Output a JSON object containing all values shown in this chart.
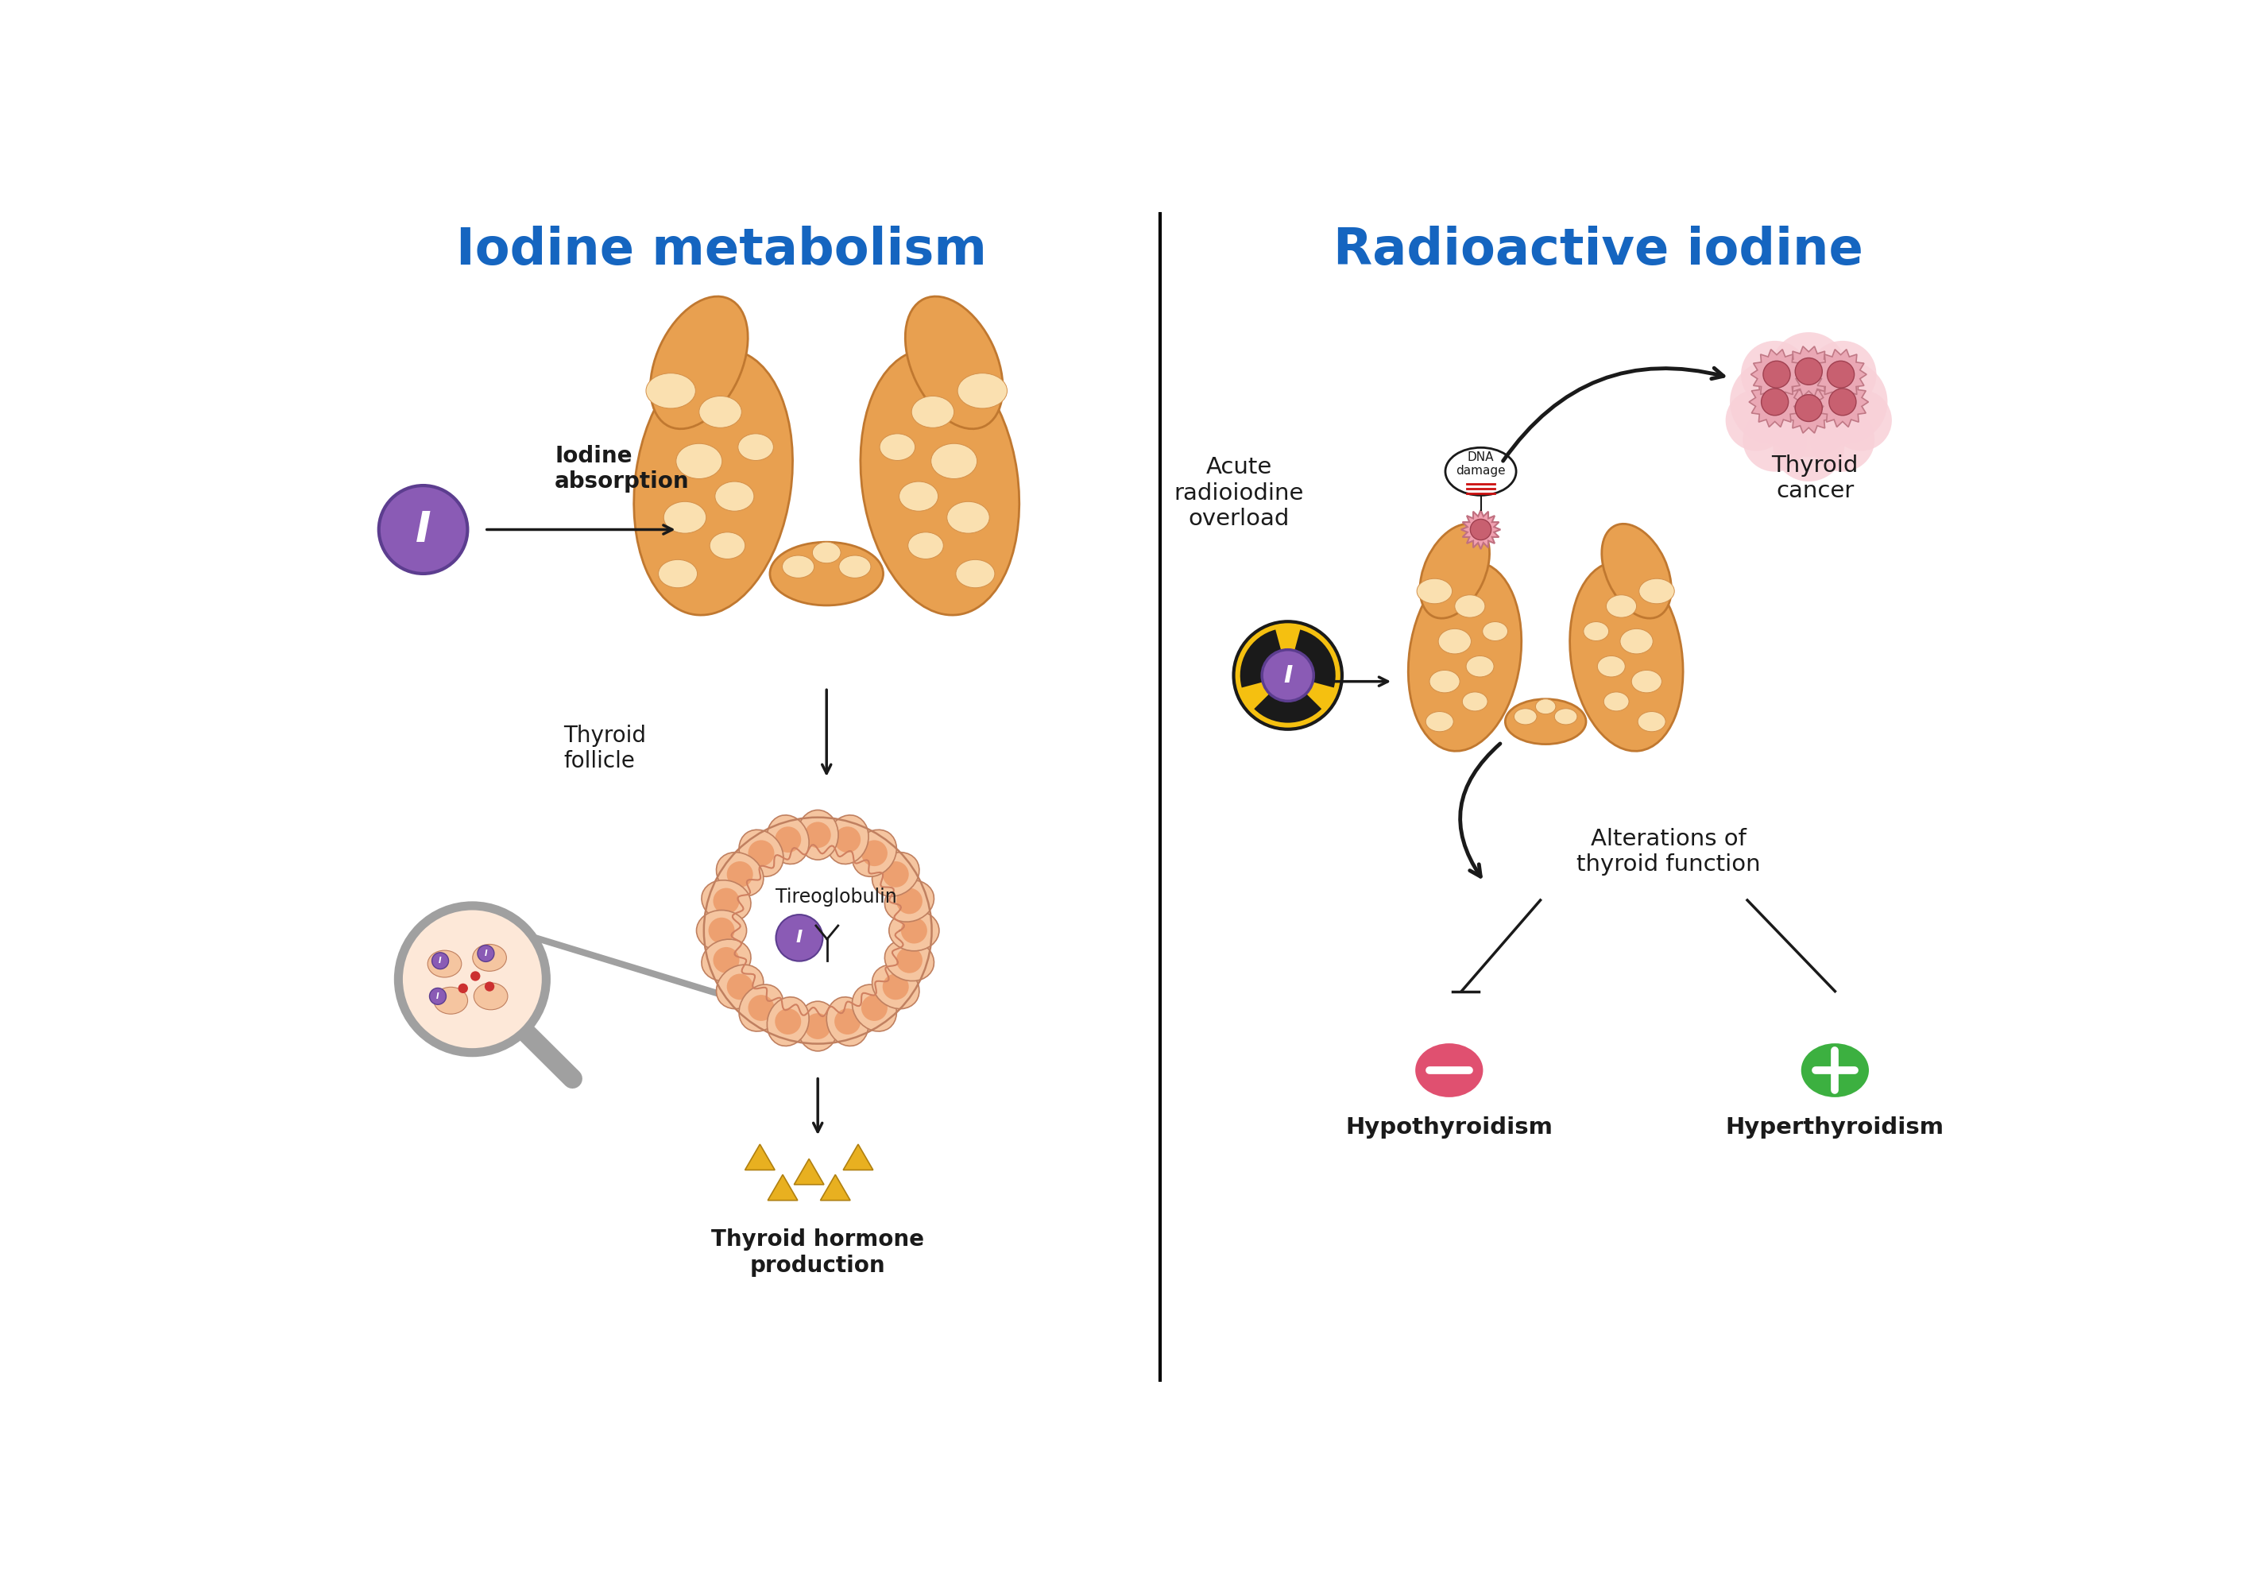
{
  "title_left": "Iodine metabolism",
  "title_right": "Radioactive iodine",
  "title_color": "#1565C0",
  "title_fontsize": 46,
  "bg_color": "#ffffff",
  "left_labels": {
    "iodine_absorption": "Iodine\nabsorption",
    "thyroid_follicle": "Thyroid\nfollicle",
    "tireoglobulin": "Tireoglobulin",
    "thyroid_hormone": "Thyroid hormone\nproduction"
  },
  "right_labels": {
    "acute_radioiodine": "Acute\nradioiodine\noverload",
    "dna_damage": "DNA\ndamage",
    "thyroid_cancer": "Thyroid\ncancer",
    "alterations": "Alterations of\nthyroid function",
    "hypothyroidism": "Hypothyroidism",
    "hyperthyroidism": "Hyperthyroidism"
  },
  "purple_color": "#8A5BB5",
  "purple_dark": "#5C3D8F",
  "orange_thyroid": "#E8A050",
  "orange_mid": "#D4904A",
  "orange_light": "#F5C880",
  "orange_lighter": "#FAE0B0",
  "peach_follicle": "#F5C5A0",
  "peach_light": "#FDE8D8",
  "yellow_tri": "#E8B020",
  "yellow_light": "#F5D060",
  "gray_color": "#A0A0A0",
  "gray_dark": "#707070",
  "pink_cancer": "#E8A0A8",
  "pink_light": "#F8D0D8",
  "pink_mid": "#E08090",
  "red_pink": "#C86070",
  "red_dark": "#A04050",
  "green_color": "#3CB040",
  "red_minus": "#E05070",
  "black": "#1A1A1A"
}
